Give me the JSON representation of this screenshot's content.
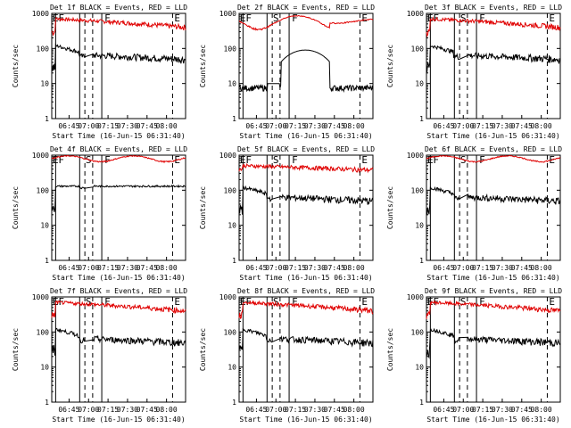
{
  "chart_data": [
    {
      "type": "line",
      "title": "Det 1f BLACK = Events, RED = LLD",
      "events_level": "mid",
      "lld_level": "high",
      "has_s_letter": false
    },
    {
      "type": "line",
      "title": "Det 2f BLACK = Events, RED = LLD",
      "events_level": "low",
      "lld_level": "high",
      "has_s_letter": true
    },
    {
      "type": "line",
      "title": "Det 3f BLACK = Events, RED = LLD",
      "events_level": "mid",
      "lld_level": "high",
      "has_s_letter": true
    },
    {
      "type": "line",
      "title": "Det 4f BLACK = Events, RED = LLD",
      "events_level": "flat",
      "lld_level": "top",
      "has_s_letter": true
    },
    {
      "type": "line",
      "title": "Det 5f BLACK = Events, RED = LLD",
      "events_level": "mid",
      "lld_level": "mid",
      "has_s_letter": true
    },
    {
      "type": "line",
      "title": "Det 6f BLACK = Events, RED = LLD",
      "events_level": "mid",
      "lld_level": "top",
      "has_s_letter": true
    },
    {
      "type": "line",
      "title": "Det 7f BLACK = Events, RED = LLD",
      "events_level": "mid",
      "lld_level": "high",
      "has_s_letter": true
    },
    {
      "type": "line",
      "title": "Det 8f BLACK = Events, RED = LLD",
      "events_level": "mid",
      "lld_level": "high",
      "has_s_letter": true
    },
    {
      "type": "line",
      "title": "Det 9f BLACK = Events, RED = LLD",
      "events_level": "mid",
      "lld_level": "high",
      "has_s_letter": true
    }
  ],
  "shared": {
    "xlabel": "Start Time (16-Jun-15 06:31:40)",
    "ylabel": "Counts/sec",
    "yticks": [
      "1",
      "10",
      "100",
      "1000"
    ],
    "xticks": [
      "06:45",
      "07:00",
      "07:15",
      "07:30",
      "07:45",
      "08:00"
    ],
    "xrange_min": [
      0,
      103
    ],
    "ylim": [
      1,
      1000
    ],
    "marker_letters": {
      "E": "E",
      "F": "F",
      "S": "S"
    },
    "colors": {
      "events": "#000000",
      "lld": "#e00000",
      "axes": "#000000"
    }
  }
}
